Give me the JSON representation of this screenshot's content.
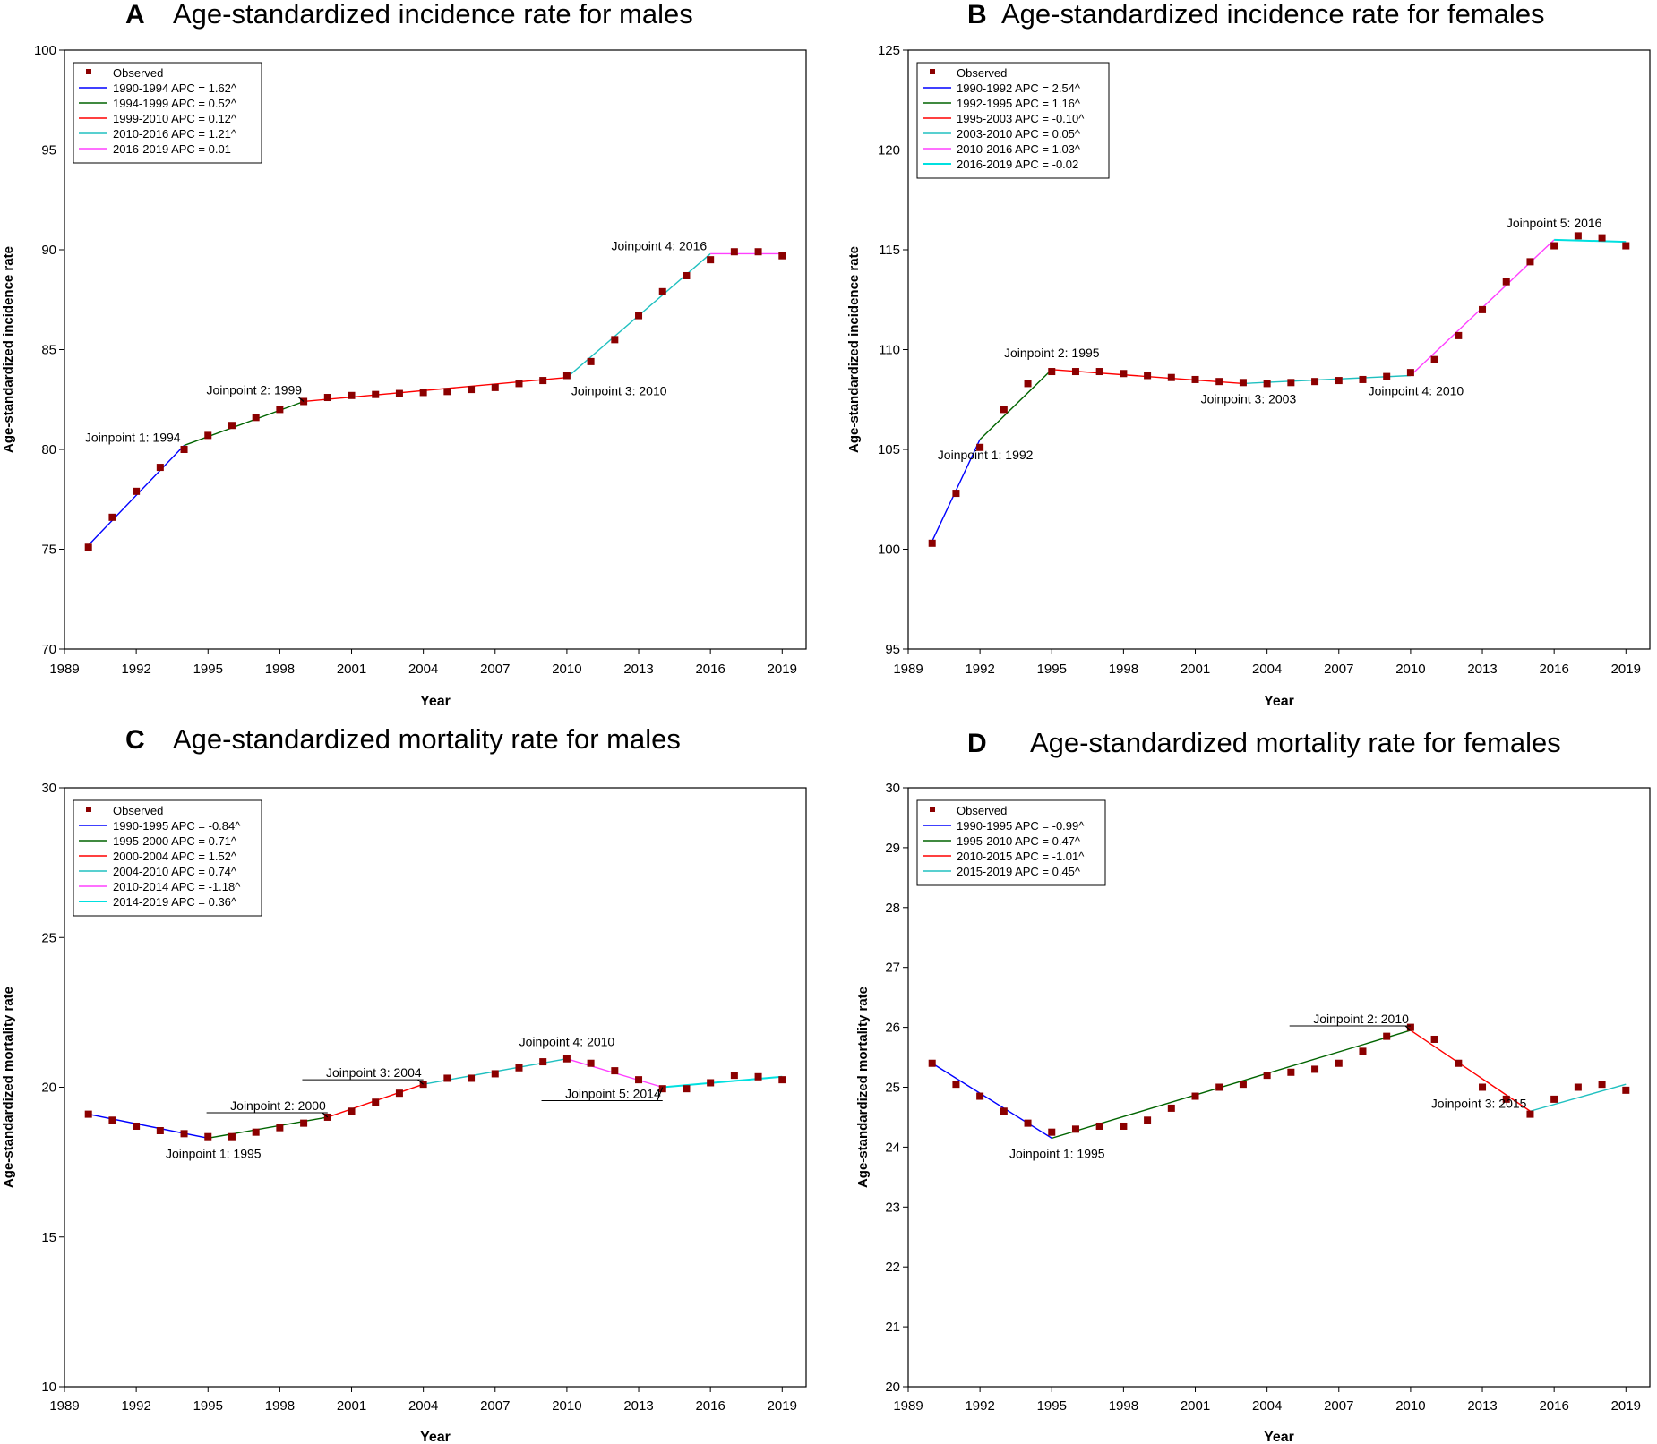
{
  "chart_data": [
    {
      "type": "line",
      "panel_letter": "A",
      "title": "Age-standardized incidence rate for males",
      "xlabel": "Year",
      "ylabel": "Age-standardized incidence rate",
      "xlim": [
        1989,
        2020
      ],
      "ylim": [
        70,
        100
      ],
      "xticks": [
        1989,
        1992,
        1995,
        1998,
        2001,
        2004,
        2007,
        2010,
        2013,
        2016,
        2019
      ],
      "yticks": [
        70,
        75,
        80,
        85,
        90,
        95,
        100
      ],
      "observed_label": "Observed",
      "observed": {
        "x": [
          1990,
          1991,
          1992,
          1993,
          1994,
          1995,
          1996,
          1997,
          1998,
          1999,
          2000,
          2001,
          2002,
          2003,
          2004,
          2005,
          2006,
          2007,
          2008,
          2009,
          2010,
          2011,
          2012,
          2013,
          2014,
          2015,
          2016,
          2017,
          2018,
          2019
        ],
        "y": [
          75.1,
          76.6,
          77.9,
          79.1,
          80.0,
          80.7,
          81.2,
          81.6,
          82.0,
          82.4,
          82.6,
          82.7,
          82.75,
          82.8,
          82.85,
          82.9,
          83.0,
          83.1,
          83.3,
          83.45,
          83.7,
          84.4,
          85.5,
          86.7,
          87.9,
          88.7,
          89.5,
          89.9,
          89.9,
          89.7
        ]
      },
      "series": [
        {
          "name": "1990-1994 APC  = 1.62^",
          "color": "#0000ff",
          "width": 1,
          "x": [
            1990,
            1994
          ],
          "y": [
            75.2,
            80.2
          ]
        },
        {
          "name": "1994-1999 APC  = 0.52^",
          "color": "#006400",
          "width": 1,
          "x": [
            1994,
            1999
          ],
          "y": [
            80.2,
            82.4
          ]
        },
        {
          "name": "1999-2010 APC  = 0.12^",
          "color": "#ff0000",
          "width": 1,
          "x": [
            1999,
            2010
          ],
          "y": [
            82.4,
            83.6
          ]
        },
        {
          "name": "2010-2016 APC  = 1.21^",
          "color": "#20c0c0",
          "width": 1,
          "x": [
            2010,
            2016
          ],
          "y": [
            83.6,
            89.8
          ]
        },
        {
          "name": "2016-2019 APC  = 0.01",
          "color": "#ff40ff",
          "width": 1,
          "x": [
            2016,
            2019
          ],
          "y": [
            89.8,
            89.8
          ]
        }
      ],
      "annotations": [
        {
          "text": "Joinpoint 1:  1994",
          "x": 1994,
          "y": 80.2,
          "pos": "left"
        },
        {
          "text": "Joinpoint 2:  1999",
          "x": 1999,
          "y": 82.4,
          "pos": "above-left"
        },
        {
          "text": "Joinpoint 3:  2010",
          "x": 2010,
          "y": 83.6,
          "pos": "right-below"
        },
        {
          "text": "Joinpoint 4:  2016",
          "x": 2016,
          "y": 89.8,
          "pos": "left"
        }
      ]
    },
    {
      "type": "line",
      "panel_letter": "B",
      "title": "Age-standardized incidence rate for females",
      "xlabel": "Year",
      "ylabel": "Age-standardized incidence rate",
      "xlim": [
        1989,
        2020
      ],
      "ylim": [
        95,
        125
      ],
      "xticks": [
        1989,
        1992,
        1995,
        1998,
        2001,
        2004,
        2007,
        2010,
        2013,
        2016,
        2019
      ],
      "yticks": [
        95,
        100,
        105,
        110,
        115,
        120,
        125
      ],
      "observed_label": "Observed",
      "observed": {
        "x": [
          1990,
          1991,
          1992,
          1993,
          1994,
          1995,
          1996,
          1997,
          1998,
          1999,
          2000,
          2001,
          2002,
          2003,
          2004,
          2005,
          2006,
          2007,
          2008,
          2009,
          2010,
          2011,
          2012,
          2013,
          2014,
          2015,
          2016,
          2017,
          2018,
          2019
        ],
        "y": [
          100.3,
          102.8,
          105.1,
          107.0,
          108.3,
          108.9,
          108.9,
          108.9,
          108.8,
          108.7,
          108.6,
          108.5,
          108.4,
          108.35,
          108.3,
          108.35,
          108.4,
          108.45,
          108.5,
          108.65,
          108.85,
          109.5,
          110.7,
          112.0,
          113.4,
          114.4,
          115.2,
          115.7,
          115.6,
          115.2
        ]
      },
      "series": [
        {
          "name": "1990-1992 APC  = 2.54^",
          "color": "#0000ff",
          "width": 1,
          "x": [
            1990,
            1992
          ],
          "y": [
            100.4,
            105.5
          ]
        },
        {
          "name": "1992-1995 APC  = 1.16^",
          "color": "#006400",
          "width": 1,
          "x": [
            1992,
            1995
          ],
          "y": [
            105.5,
            109.0
          ]
        },
        {
          "name": "1995-2003 APC  = -0.10^",
          "color": "#ff0000",
          "width": 1,
          "x": [
            1995,
            2003
          ],
          "y": [
            109.0,
            108.3
          ]
        },
        {
          "name": "2003-2010 APC  = 0.05^",
          "color": "#20c0c0",
          "width": 1,
          "x": [
            2003,
            2010
          ],
          "y": [
            108.3,
            108.7
          ]
        },
        {
          "name": "2010-2016 APC  = 1.03^",
          "color": "#ff40ff",
          "width": 1,
          "x": [
            2010,
            2016
          ],
          "y": [
            108.7,
            115.5
          ]
        },
        {
          "name": "2016-2019 APC  = -0.02",
          "color": "#00e0e0",
          "width": 2,
          "x": [
            2016,
            2019
          ],
          "y": [
            115.5,
            115.4
          ]
        }
      ],
      "annotations": [
        {
          "text": "Joinpoint 1:  1992",
          "x": 1992,
          "y": 105.5,
          "pos": "below"
        },
        {
          "text": "Joinpoint 2:  1995",
          "x": 1995,
          "y": 109.0,
          "pos": "above"
        },
        {
          "text": "Joinpoint 3:  2003",
          "x": 2003,
          "y": 108.3,
          "pos": "below"
        },
        {
          "text": "Joinpoint 4:  2010",
          "x": 2010,
          "y": 108.7,
          "pos": "below"
        },
        {
          "text": "Joinpoint 5:  2016",
          "x": 2016,
          "y": 115.5,
          "pos": "above"
        }
      ]
    },
    {
      "type": "line",
      "panel_letter": "C",
      "title": "Age-standardized mortality rate for males",
      "xlabel": "Year",
      "ylabel": "Age-standardized mortality rate",
      "xlim": [
        1989,
        2020
      ],
      "ylim": [
        10,
        30
      ],
      "xticks": [
        1989,
        1992,
        1995,
        1998,
        2001,
        2004,
        2007,
        2010,
        2013,
        2016,
        2019
      ],
      "yticks": [
        10,
        15,
        20,
        25,
        30
      ],
      "observed_label": "Observed",
      "observed": {
        "x": [
          1990,
          1991,
          1992,
          1993,
          1994,
          1995,
          1996,
          1997,
          1998,
          1999,
          2000,
          2001,
          2002,
          2003,
          2004,
          2005,
          2006,
          2007,
          2008,
          2009,
          2010,
          2011,
          2012,
          2013,
          2014,
          2015,
          2016,
          2017,
          2018,
          2019
        ],
        "y": [
          19.1,
          18.9,
          18.7,
          18.55,
          18.45,
          18.35,
          18.35,
          18.5,
          18.65,
          18.8,
          19.0,
          19.2,
          19.5,
          19.8,
          20.1,
          20.3,
          20.3,
          20.45,
          20.65,
          20.85,
          20.95,
          20.8,
          20.55,
          20.25,
          19.95,
          19.95,
          20.15,
          20.4,
          20.35,
          20.25
        ]
      },
      "series": [
        {
          "name": "1990-1995 APC  = -0.84^",
          "color": "#0000ff",
          "width": 1,
          "x": [
            1990,
            1995
          ],
          "y": [
            19.1,
            18.3
          ]
        },
        {
          "name": "1995-2000 APC  = 0.71^",
          "color": "#006400",
          "width": 1,
          "x": [
            1995,
            2000
          ],
          "y": [
            18.3,
            19.0
          ]
        },
        {
          "name": "2000-2004 APC  = 1.52^",
          "color": "#ff0000",
          "width": 1,
          "x": [
            2000,
            2004
          ],
          "y": [
            19.0,
            20.1
          ]
        },
        {
          "name": "2004-2010 APC  = 0.74^",
          "color": "#20c0c0",
          "width": 1,
          "x": [
            2004,
            2010
          ],
          "y": [
            20.1,
            20.95
          ]
        },
        {
          "name": "2010-2014 APC  = -1.18^",
          "color": "#ff40ff",
          "width": 1,
          "x": [
            2010,
            2014
          ],
          "y": [
            20.95,
            20.0
          ]
        },
        {
          "name": "2014-2019 APC  = 0.36^",
          "color": "#00e0e0",
          "width": 2,
          "x": [
            2014,
            2019
          ],
          "y": [
            20.0,
            20.35
          ]
        }
      ],
      "annotations": [
        {
          "text": "Joinpoint 1:  1995",
          "x": 1995,
          "y": 18.3,
          "pos": "below"
        },
        {
          "text": "Joinpoint 2:  2000",
          "x": 2000,
          "y": 19.0,
          "pos": "above-left"
        },
        {
          "text": "Joinpoint 3:  2004",
          "x": 2004,
          "y": 20.1,
          "pos": "above-left"
        },
        {
          "text": "Joinpoint 4:  2010",
          "x": 2010,
          "y": 20.95,
          "pos": "above"
        },
        {
          "text": "Joinpoint 5:  2014",
          "x": 2014,
          "y": 20.0,
          "pos": "below-left"
        }
      ]
    },
    {
      "type": "line",
      "panel_letter": "D",
      "title": "Age-standardized mortality rate for females",
      "xlabel": "Year",
      "ylabel": "Age-standardized mortality rate",
      "xlim": [
        1989,
        2020
      ],
      "ylim": [
        20,
        30
      ],
      "xticks": [
        1989,
        1992,
        1995,
        1998,
        2001,
        2004,
        2007,
        2010,
        2013,
        2016,
        2019
      ],
      "yticks": [
        20,
        21,
        22,
        23,
        24,
        25,
        26,
        27,
        28,
        29,
        30
      ],
      "observed_label": "Observed",
      "observed": {
        "x": [
          1990,
          1991,
          1992,
          1993,
          1994,
          1995,
          1996,
          1997,
          1998,
          1999,
          2000,
          2001,
          2002,
          2003,
          2004,
          2005,
          2006,
          2007,
          2008,
          2009,
          2010,
          2011,
          2012,
          2013,
          2014,
          2015,
          2016,
          2017,
          2018,
          2019
        ],
        "y": [
          25.4,
          25.05,
          24.85,
          24.6,
          24.4,
          24.25,
          24.3,
          24.35,
          24.35,
          24.45,
          24.65,
          24.85,
          25.0,
          25.05,
          25.2,
          25.25,
          25.3,
          25.4,
          25.6,
          25.85,
          26.0,
          25.8,
          25.4,
          25.0,
          24.8,
          24.55,
          24.8,
          25.0,
          25.05,
          24.95
        ]
      },
      "series": [
        {
          "name": "1990-1995 APC  = -0.99^",
          "color": "#0000ff",
          "width": 1,
          "x": [
            1990,
            1995
          ],
          "y": [
            25.4,
            24.15
          ]
        },
        {
          "name": "1995-2010 APC  = 0.47^",
          "color": "#006400",
          "width": 1,
          "x": [
            1995,
            2010
          ],
          "y": [
            24.15,
            25.95
          ]
        },
        {
          "name": "2010-2015 APC  = -1.01^",
          "color": "#ff0000",
          "width": 1,
          "x": [
            2010,
            2015
          ],
          "y": [
            25.95,
            24.6
          ]
        },
        {
          "name": "2015-2019 APC  = 0.45^",
          "color": "#20c0c0",
          "width": 1,
          "x": [
            2015,
            2019
          ],
          "y": [
            24.6,
            25.05
          ]
        }
      ],
      "annotations": [
        {
          "text": "Joinpoint 1:  1995",
          "x": 1995,
          "y": 24.15,
          "pos": "below"
        },
        {
          "text": "Joinpoint 2:  2010",
          "x": 2010,
          "y": 25.95,
          "pos": "above-left"
        },
        {
          "text": "Joinpoint 3:  2015",
          "x": 2015,
          "y": 24.6,
          "pos": "left"
        }
      ]
    }
  ]
}
